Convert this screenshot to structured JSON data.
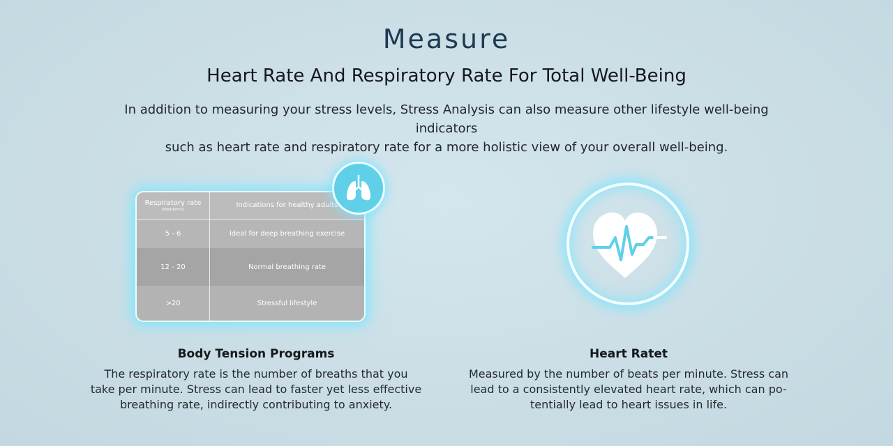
{
  "header": {
    "title": "Measure",
    "subtitle": "Heart Rate And Respiratory Rate For Total Well-Being",
    "intro_line1": "In addition to measuring your stress levels, Stress Analysis can also measure other lifestyle well-being indicators",
    "intro_line2": "such as heart rate and respiratory rate for a more holistic view of your overall well-being."
  },
  "respiratory_table": {
    "col1_header": "Respiratory rate",
    "col1_unit": "(Breath/min)",
    "col2_header": "Indications for healthy adults",
    "rows": [
      {
        "rate": "5 - 6",
        "indication": "Ideal for deep breathing exercise"
      },
      {
        "rate": "12 - 20",
        "indication": "Normal breathing rate"
      },
      {
        "rate": ">20",
        "indication": "Stressful lifestyle"
      }
    ]
  },
  "icons": {
    "lungs": "lungs-icon",
    "heart": "heart-pulse-icon"
  },
  "colors": {
    "accent": "#5fd0e8",
    "glow": "#78e6ff",
    "heading": "#1d3a52"
  },
  "cards": {
    "left": {
      "title": "Body Tension Programs",
      "line1": "The respiratory rate is the number of breaths that you",
      "line2": "take per minute. Stress can lead to faster yet less effective",
      "line3": "breathing rate, indirectly contributing to anxiety."
    },
    "right": {
      "title": "Heart Ratet",
      "line1": "Measured by the number of beats per minute. Stress can",
      "line2": "lead to a consistently elevated heart rate, which can po-",
      "line3": "tentially lead to heart issues in life."
    }
  }
}
